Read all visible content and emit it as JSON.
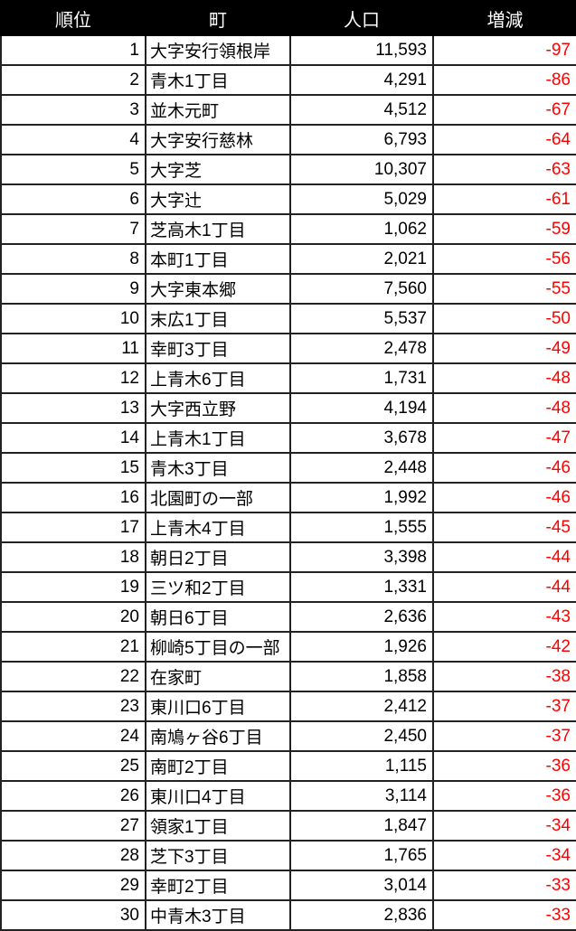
{
  "header": {
    "rank": "順位",
    "town": "町",
    "population": "人口",
    "change": "増減"
  },
  "colors": {
    "header_bg": "#000000",
    "header_text": "#ffffff",
    "negative": "#ff0000"
  },
  "rows": [
    {
      "rank": "1",
      "town": "大字安行領根岸",
      "population": "11,593",
      "change": "-97"
    },
    {
      "rank": "2",
      "town": "青木1丁目",
      "population": "4,291",
      "change": "-86"
    },
    {
      "rank": "3",
      "town": "並木元町",
      "population": "4,512",
      "change": "-67"
    },
    {
      "rank": "4",
      "town": "大字安行慈林",
      "population": "6,793",
      "change": "-64"
    },
    {
      "rank": "5",
      "town": "大字芝",
      "population": "10,307",
      "change": "-63"
    },
    {
      "rank": "6",
      "town": "大字辻",
      "population": "5,029",
      "change": "-61"
    },
    {
      "rank": "7",
      "town": "芝高木1丁目",
      "population": "1,062",
      "change": "-59"
    },
    {
      "rank": "8",
      "town": "本町1丁目",
      "population": "2,021",
      "change": "-56"
    },
    {
      "rank": "9",
      "town": "大字東本郷",
      "population": "7,560",
      "change": "-55"
    },
    {
      "rank": "10",
      "town": "末広1丁目",
      "population": "5,537",
      "change": "-50"
    },
    {
      "rank": "11",
      "town": "幸町3丁目",
      "population": "2,478",
      "change": "-49"
    },
    {
      "rank": "12",
      "town": "上青木6丁目",
      "population": "1,731",
      "change": "-48"
    },
    {
      "rank": "13",
      "town": "大字西立野",
      "population": "4,194",
      "change": "-48"
    },
    {
      "rank": "14",
      "town": "上青木1丁目",
      "population": "3,678",
      "change": "-47"
    },
    {
      "rank": "15",
      "town": "青木3丁目",
      "population": "2,448",
      "change": "-46"
    },
    {
      "rank": "16",
      "town": "北園町の一部",
      "population": "1,992",
      "change": "-46"
    },
    {
      "rank": "17",
      "town": "上青木4丁目",
      "population": "1,555",
      "change": "-45"
    },
    {
      "rank": "18",
      "town": "朝日2丁目",
      "population": "3,398",
      "change": "-44"
    },
    {
      "rank": "19",
      "town": "三ツ和2丁目",
      "population": "1,331",
      "change": "-44"
    },
    {
      "rank": "20",
      "town": "朝日6丁目",
      "population": "2,636",
      "change": "-43"
    },
    {
      "rank": "21",
      "town": "柳崎5丁目の一部",
      "population": "1,926",
      "change": "-42"
    },
    {
      "rank": "22",
      "town": "在家町",
      "population": "1,858",
      "change": "-38"
    },
    {
      "rank": "23",
      "town": "東川口6丁目",
      "population": "2,412",
      "change": "-37"
    },
    {
      "rank": "24",
      "town": "南鳩ヶ谷6丁目",
      "population": "2,450",
      "change": "-37"
    },
    {
      "rank": "25",
      "town": "南町2丁目",
      "population": "1,115",
      "change": "-36"
    },
    {
      "rank": "26",
      "town": "東川口4丁目",
      "population": "3,114",
      "change": "-36"
    },
    {
      "rank": "27",
      "town": "領家1丁目",
      "population": "1,847",
      "change": "-34"
    },
    {
      "rank": "28",
      "town": "芝下3丁目",
      "population": "1,765",
      "change": "-34"
    },
    {
      "rank": "29",
      "town": "幸町2丁目",
      "population": "3,014",
      "change": "-33"
    },
    {
      "rank": "30",
      "town": "中青木3丁目",
      "population": "2,836",
      "change": "-33"
    }
  ]
}
